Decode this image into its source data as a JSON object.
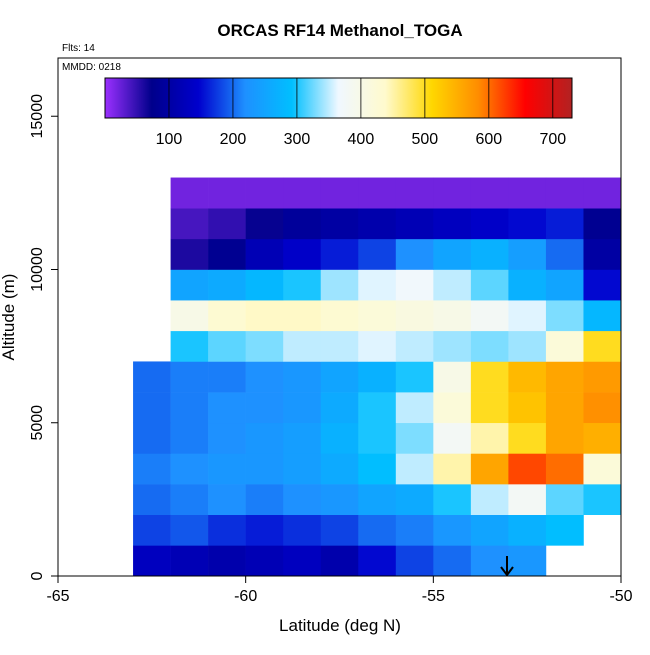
{
  "chart_data": {
    "type": "heatmap",
    "title": "ORCAS RF14 Methanol_TOGA",
    "annotations": [
      "Flts: 14",
      "MMDD: 0218"
    ],
    "xlabel": "Latitude (deg N)",
    "ylabel": "Altitude (m)",
    "xlim": [
      -65,
      -50
    ],
    "xticks": [
      -65,
      -60,
      -55,
      -50
    ],
    "ylim": [
      0,
      16900
    ],
    "yticks": [
      0,
      5000,
      10000,
      15000
    ],
    "x": [
      -62.5,
      -61.5,
      -60.5,
      -59.5,
      -58.5,
      -57.5,
      -56.5,
      -55.5,
      -54.5,
      -53.5,
      -52.5,
      -51.5,
      -50.5
    ],
    "y": [
      500,
      1500,
      2500,
      3500,
      4500,
      5500,
      6500,
      7500,
      8500,
      9500,
      10500,
      11500,
      12500
    ],
    "z": [
      [
        130,
        120,
        110,
        120,
        130,
        110,
        150,
        180,
        200,
        220,
        230,
        null,
        null
      ],
      [
        180,
        190,
        170,
        160,
        170,
        180,
        200,
        210,
        230,
        250,
        270,
        290,
        null
      ],
      [
        200,
        210,
        220,
        210,
        220,
        230,
        250,
        260,
        300,
        350,
        380,
        320,
        300
      ],
      [
        210,
        220,
        230,
        230,
        240,
        260,
        290,
        350,
        450,
        560,
        620,
        600,
        420
      ],
      [
        200,
        210,
        220,
        230,
        240,
        270,
        300,
        330,
        380,
        450,
        500,
        560,
        550
      ],
      [
        200,
        210,
        220,
        220,
        230,
        260,
        300,
        350,
        420,
        500,
        530,
        560,
        580
      ],
      [
        200,
        210,
        210,
        220,
        230,
        250,
        270,
        300,
        400,
        500,
        540,
        560,
        570
      ],
      [
        null,
        300,
        320,
        330,
        350,
        350,
        360,
        350,
        340,
        330,
        340,
        420,
        500
      ],
      [
        null,
        400,
        430,
        440,
        440,
        430,
        420,
        410,
        400,
        380,
        360,
        330,
        280
      ],
      [
        null,
        250,
        260,
        280,
        300,
        340,
        360,
        370,
        350,
        320,
        270,
        250,
        150
      ],
      [
        null,
        60,
        80,
        120,
        140,
        160,
        180,
        220,
        250,
        270,
        240,
        200,
        100
      ],
      [
        null,
        40,
        50,
        70,
        90,
        100,
        110,
        120,
        130,
        140,
        150,
        160,
        80
      ],
      [
        null,
        20,
        20,
        20,
        20,
        20,
        20,
        20,
        20,
        20,
        20,
        20,
        20
      ]
    ],
    "zlim": [
      0,
      730
    ],
    "colorbar_ticks": [
      100,
      200,
      300,
      400,
      500,
      600,
      700
    ],
    "colors": [
      "#9b30ff",
      "#00008b",
      "#0000cd",
      "#1e90ff",
      "#00bfff",
      "#f0f8ff",
      "#fffacd",
      "#ffd700",
      "#ff8c00",
      "#ff0000",
      "#b22222"
    ]
  }
}
